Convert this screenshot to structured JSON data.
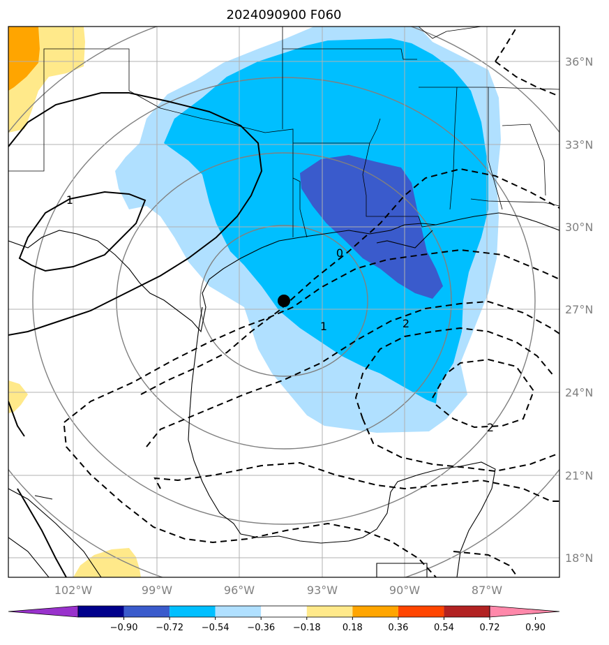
{
  "title": "2024090900 F060",
  "lon_ticks": [
    "102°W",
    "99°W",
    "96°W",
    "93°W",
    "90°W",
    "87°W"
  ],
  "lat_ticks": [
    "36°N",
    "33°N",
    "30°N",
    "27°N",
    "24°N",
    "21°N",
    "18°N"
  ],
  "contour_labels": [
    "1",
    "0",
    "1",
    "2",
    "2"
  ],
  "colorbar": {
    "colors": [
      "#9932cc",
      "#00008b",
      "#3a5bcc",
      "#00bfff",
      "#b0e0ff",
      "#ffffff",
      "#ffe98a",
      "#ffa500",
      "#ff4500",
      "#b22222",
      "#ff88aa"
    ],
    "tick_labels": [
      "−0.90",
      "−0.72",
      "−0.54",
      "−0.36",
      "−0.18",
      "0.18",
      "0.36",
      "0.54",
      "0.72",
      "0.90"
    ]
  },
  "fill_colors": {
    "light_blue": "#b0e0ff",
    "sky_blue": "#00bfff",
    "royal_blue": "#3a5bcc",
    "light_yellow": "#ffe98a",
    "orange": "#ffa500"
  },
  "storm_marker": "storm-center-dot"
}
